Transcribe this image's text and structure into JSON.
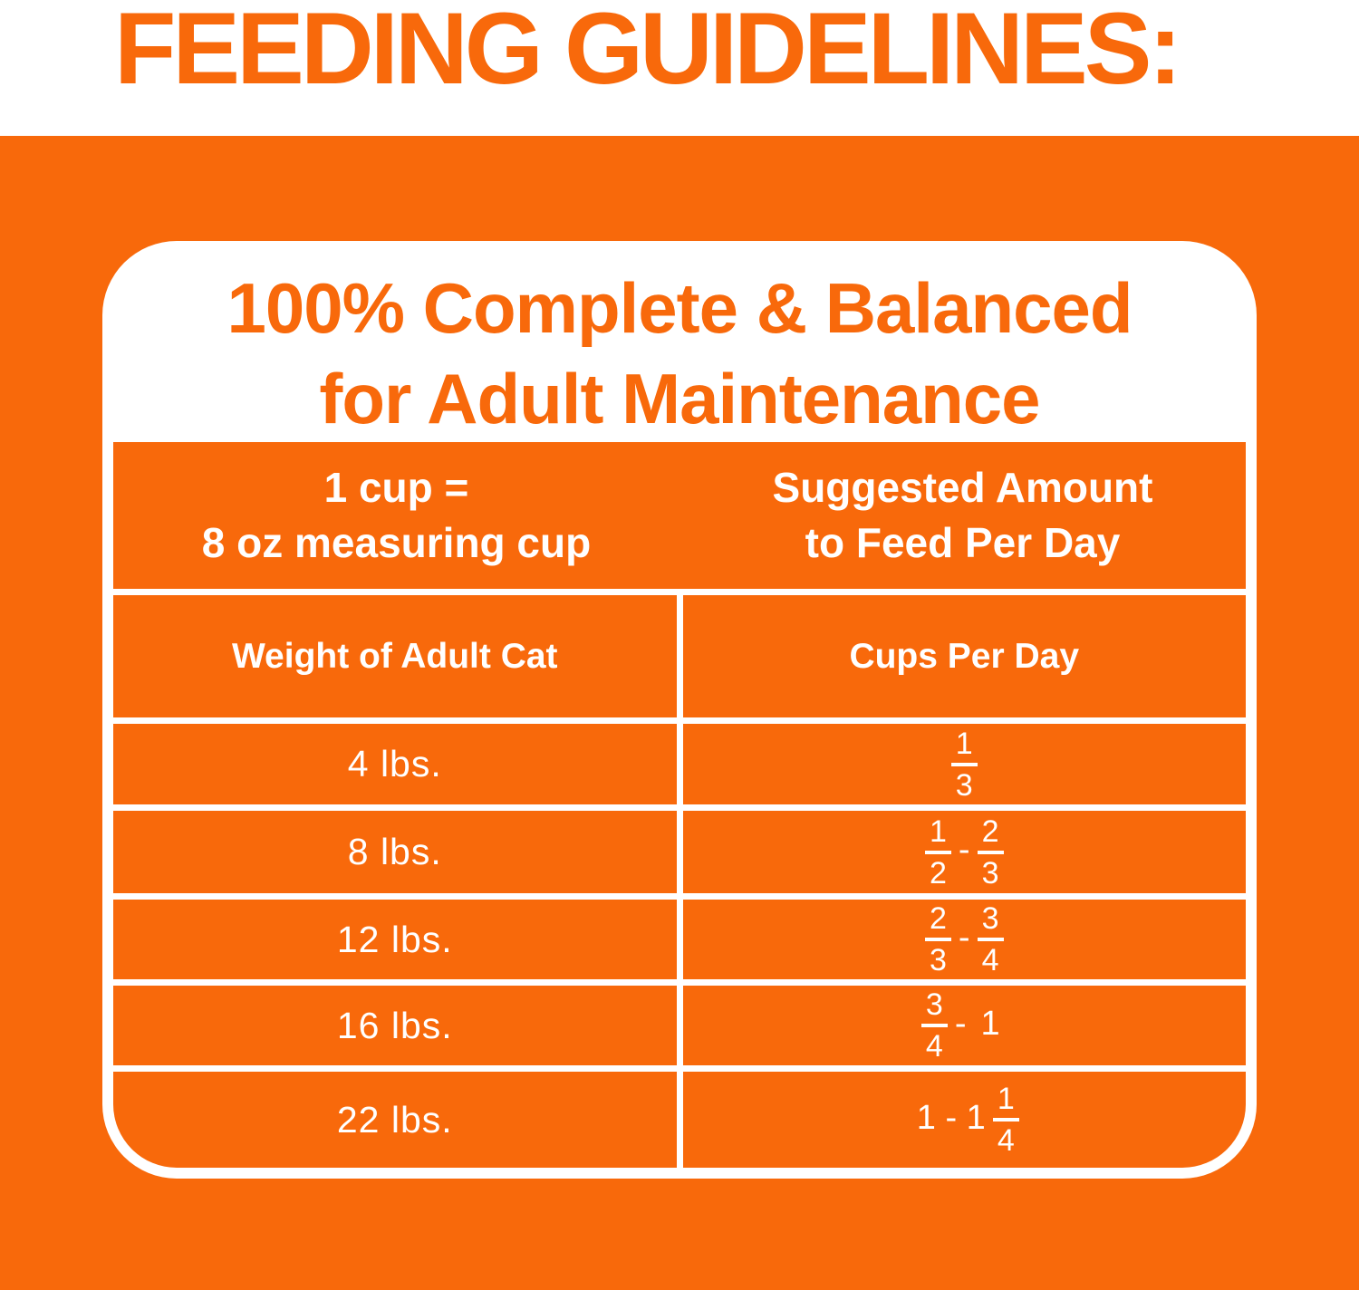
{
  "page": {
    "heading": "FEEDING GUIDELINES:"
  },
  "colors": {
    "brand_orange": "#F8690B",
    "white": "#FFFFFF"
  },
  "card": {
    "title_line1": "100% Complete & Balanced",
    "title_line2": "for Adult Maintenance",
    "table": {
      "header_top": {
        "left_line1": "1 cup =",
        "left_line2": "8 oz measuring cup",
        "right_line1": "Suggested Amount",
        "right_line2": "to Feed Per Day"
      },
      "columns": [
        "Weight of Adult Cat",
        "Cups Per Day"
      ],
      "rows": [
        {
          "weight": "4 lbs.",
          "cups": [
            {
              "frac": [
                "1",
                "3"
              ]
            }
          ]
        },
        {
          "weight": "8 lbs.",
          "cups": [
            {
              "frac": [
                "1",
                "2"
              ]
            },
            {
              "text": "-"
            },
            {
              "frac": [
                "2",
                "3"
              ]
            }
          ]
        },
        {
          "weight": "12 lbs.",
          "cups": [
            {
              "frac": [
                "2",
                "3"
              ]
            },
            {
              "text": "-"
            },
            {
              "frac": [
                "3",
                "4"
              ]
            }
          ]
        },
        {
          "weight": "16 lbs.",
          "cups": [
            {
              "frac": [
                "3",
                "4"
              ]
            },
            {
              "text": "-"
            },
            {
              "text": "1"
            }
          ]
        },
        {
          "weight": "22 lbs.",
          "cups": [
            {
              "text": "1 - 1"
            },
            {
              "frac": [
                "1",
                "4"
              ]
            }
          ]
        }
      ]
    }
  }
}
